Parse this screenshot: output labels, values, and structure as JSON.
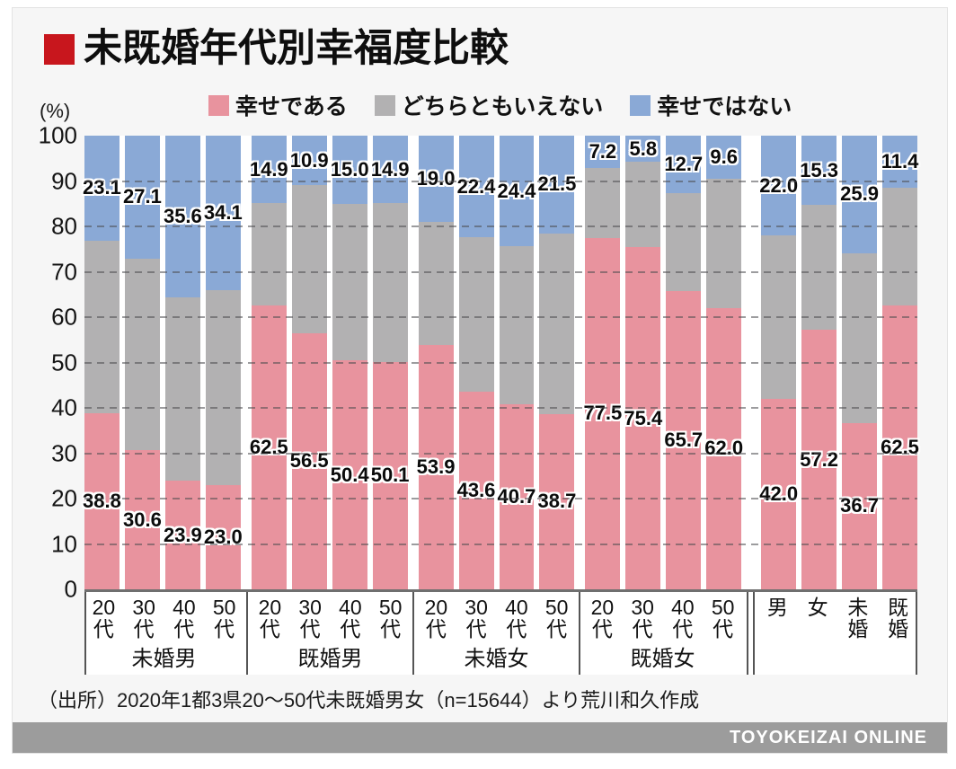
{
  "title": "未既婚年代別幸福度比較",
  "unit_label": "(%)",
  "legend": [
    {
      "name": "happy",
      "label": "幸せである",
      "color": "#e8939e"
    },
    {
      "name": "neutral",
      "label": "どちらともいえない",
      "color": "#b2b1b2"
    },
    {
      "name": "unhappy",
      "label": "幸せではない",
      "color": "#8aa9d6"
    }
  ],
  "source_note": "（出所）2020年1都3県20〜50代未既婚男女（n=15644）より荒川和久作成",
  "brand": "TOYOKEIZAI ONLINE",
  "colors": {
    "accent_red": "#c8161d",
    "bar_happy": "#e8939e",
    "bar_neutral": "#b2b1b2",
    "bar_unhappy": "#8aa9d6",
    "brand_bar": "#9c9c9c"
  },
  "chart_data": {
    "type": "bar",
    "stacked": true,
    "title": "未既婚年代別幸福度比較",
    "ylabel": "(%)",
    "ylim": [
      0,
      100
    ],
    "yticks": [
      0,
      10,
      20,
      30,
      40,
      50,
      60,
      70,
      80,
      90,
      100
    ],
    "grid": "dashed horizontal every 10",
    "legend_position": "top",
    "series_names": [
      "幸せである",
      "どちらともいえない",
      "幸せではない"
    ],
    "groups": [
      {
        "label": "未婚男",
        "categories": [
          "20代",
          "30代",
          "40代",
          "50代"
        ],
        "happy": [
          38.8,
          30.6,
          23.9,
          23.0
        ],
        "neutral": [
          38.1,
          42.3,
          40.5,
          42.9
        ],
        "unhappy": [
          23.1,
          27.1,
          35.6,
          34.1
        ]
      },
      {
        "label": "既婚男",
        "categories": [
          "20代",
          "30代",
          "40代",
          "50代"
        ],
        "happy": [
          62.5,
          56.5,
          50.4,
          50.1
        ],
        "neutral": [
          22.6,
          32.6,
          34.6,
          35.0
        ],
        "unhappy": [
          14.9,
          10.9,
          15.0,
          14.9
        ]
      },
      {
        "label": "未婚女",
        "categories": [
          "20代",
          "30代",
          "40代",
          "50代"
        ],
        "happy": [
          53.9,
          43.6,
          40.7,
          38.7
        ],
        "neutral": [
          27.1,
          34.0,
          34.9,
          39.8
        ],
        "unhappy": [
          19.0,
          22.4,
          24.4,
          21.5
        ]
      },
      {
        "label": "既婚女",
        "categories": [
          "20代",
          "30代",
          "40代",
          "50代"
        ],
        "happy": [
          77.5,
          75.4,
          65.7,
          62.0
        ],
        "neutral": [
          15.3,
          18.8,
          21.6,
          28.4
        ],
        "unhappy": [
          7.2,
          5.8,
          12.7,
          9.6
        ]
      },
      {
        "label": "",
        "categories": [
          "男",
          "女",
          "未婚",
          "既婚"
        ],
        "happy": [
          42.0,
          57.2,
          36.7,
          62.5
        ],
        "neutral": [
          36.0,
          27.5,
          37.4,
          26.1
        ],
        "unhappy": [
          22.0,
          15.3,
          25.9,
          11.4
        ]
      }
    ]
  }
}
